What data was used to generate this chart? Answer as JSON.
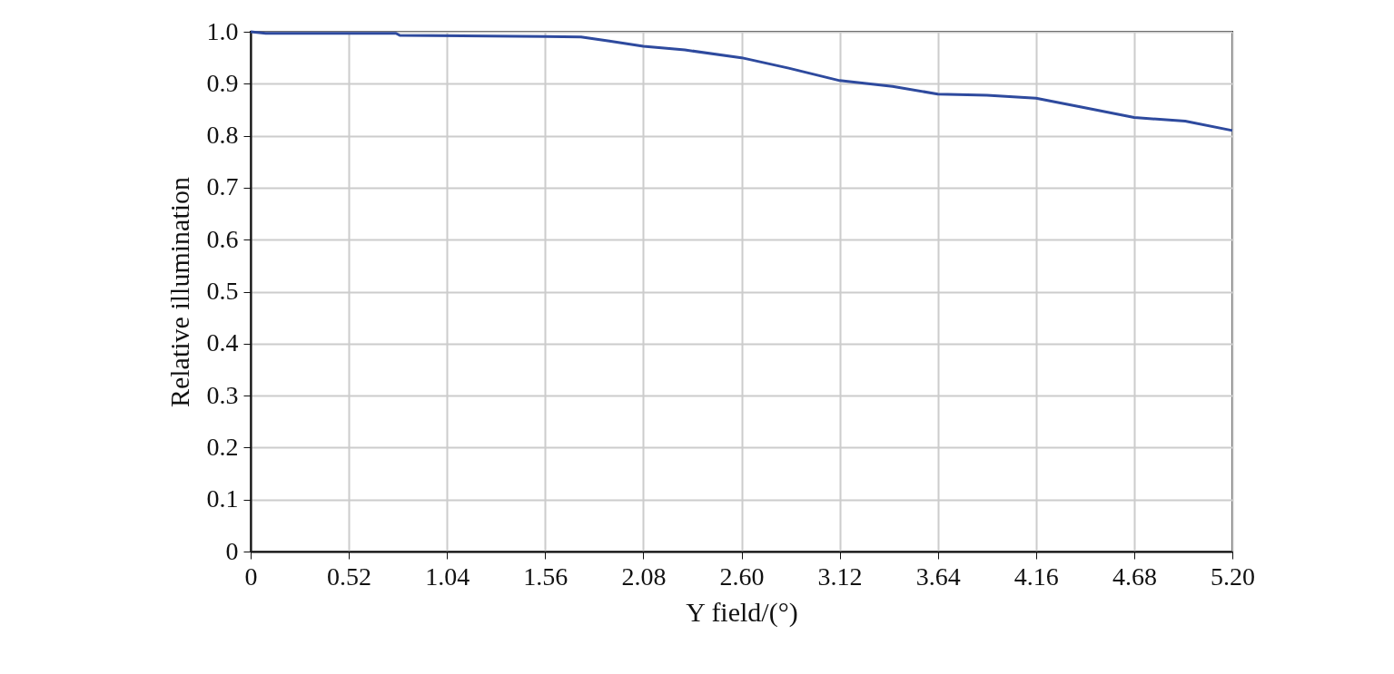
{
  "chart_data": {
    "type": "line",
    "xlabel": "Y field/(°)",
    "ylabel": "Relative illumination",
    "x": [
      0,
      0.08,
      0.77,
      0.79,
      1.56,
      1.75,
      1.9,
      2.08,
      2.3,
      2.6,
      2.85,
      3.12,
      3.4,
      3.64,
      3.9,
      4.16,
      4.4,
      4.68,
      4.95,
      5.2
    ],
    "series": [
      {
        "color": "#2e4a9e",
        "values": [
          1.0,
          0.997,
          0.997,
          0.993,
          0.991,
          0.99,
          0.982,
          0.972,
          0.965,
          0.95,
          0.93,
          0.906,
          0.895,
          0.88,
          0.878,
          0.872,
          0.855,
          0.835,
          0.828,
          0.81
        ]
      }
    ],
    "xlim": [
      0,
      5.2
    ],
    "xticks": [
      0,
      0.52,
      1.04,
      1.56,
      2.08,
      {
        "value": 2.6,
        "label": "2.60"
      },
      3.12,
      3.64,
      4.16,
      4.68,
      {
        "value": 5.2,
        "label": "5.20"
      }
    ],
    "ylim": [
      0,
      1.0
    ],
    "yticks": [
      0,
      0.1,
      0.2,
      0.3,
      0.4,
      0.5,
      0.6,
      0.7,
      0.8,
      0.9,
      {
        "value": 1.0,
        "label": "1.0"
      }
    ],
    "grid": true,
    "marker": "none",
    "line_style": "solid"
  }
}
